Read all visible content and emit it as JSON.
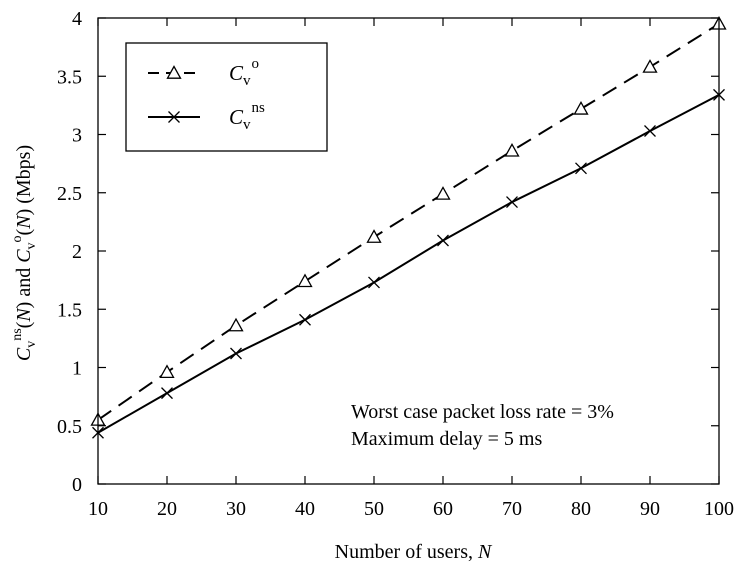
{
  "chart_data": {
    "type": "line",
    "xlabel": {
      "text": "Number of users, ",
      "var": "N"
    },
    "ylabel": {
      "parts": [
        {
          "t": "C",
          "i": true
        },
        {
          "t": "v",
          "sub": true
        },
        {
          "t": "ns",
          "sup": true
        },
        {
          "t": "("
        },
        {
          "t": "N",
          "i": true
        },
        {
          "t": ") and "
        },
        {
          "t": "C",
          "i": true
        },
        {
          "t": "v",
          "sub": true
        },
        {
          "t": "o",
          "sup": true
        },
        {
          "t": "("
        },
        {
          "t": "N",
          "i": true
        },
        {
          "t": ") (Mbps)"
        }
      ]
    },
    "xlim": [
      10,
      100
    ],
    "ylim": [
      0,
      4
    ],
    "x_ticks": [
      10,
      20,
      30,
      40,
      50,
      60,
      70,
      80,
      90,
      100
    ],
    "y_ticks": [
      0,
      0.5,
      1,
      1.5,
      2,
      2.5,
      3,
      3.5,
      4
    ],
    "y_tick_labels": [
      "0",
      "0.5",
      "1",
      "1.5",
      "2",
      "2.5",
      "3",
      "3.5",
      "4"
    ],
    "x": [
      10,
      20,
      30,
      40,
      50,
      60,
      70,
      80,
      90,
      100
    ],
    "series": [
      {
        "name": {
          "base": "C",
          "sub": "v",
          "sup": "o"
        },
        "style": "dashed",
        "marker": "triangle",
        "values": [
          0.55,
          0.96,
          1.36,
          1.74,
          2.12,
          2.49,
          2.86,
          3.22,
          3.58,
          3.95
        ]
      },
      {
        "name": {
          "base": "C",
          "sub": "v",
          "sup": "ns"
        },
        "style": "solid",
        "marker": "x",
        "values": [
          0.44,
          0.78,
          1.12,
          1.41,
          1.73,
          2.09,
          2.42,
          2.71,
          3.03,
          3.34
        ]
      }
    ],
    "legend_position": "top-left",
    "annotation": [
      "Worst case packet loss rate = 3%",
      "Maximum delay = 5 ms"
    ],
    "grid": false
  }
}
